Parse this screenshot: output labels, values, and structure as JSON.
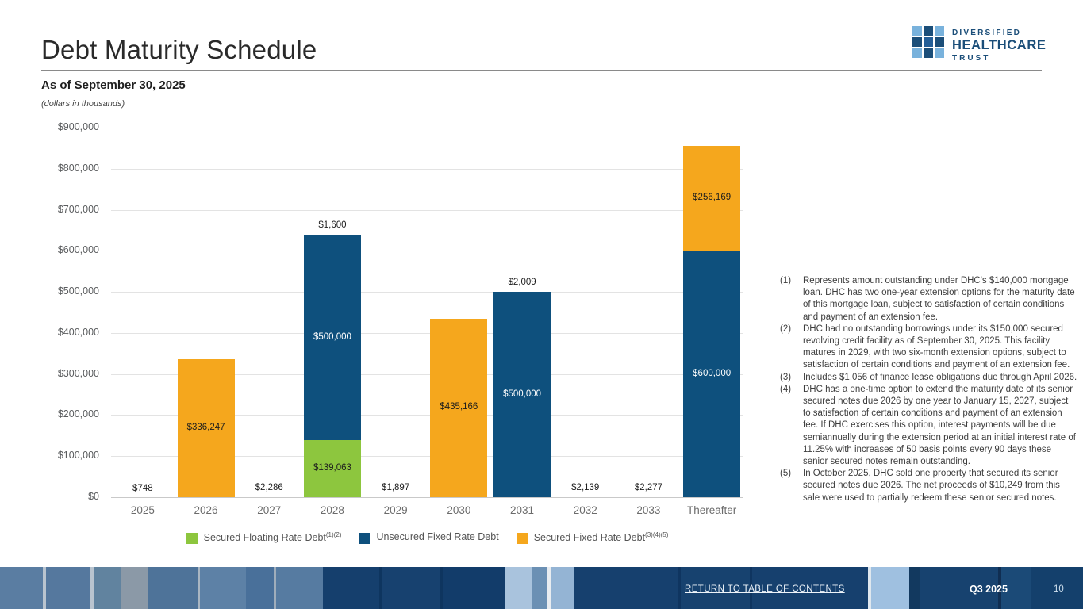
{
  "header": {
    "title": "Debt Maturity Schedule",
    "subtitle": "As of September 30, 2025",
    "units_note": "(dollars in thousands)",
    "logo": {
      "line1": "DIVERSIFIED",
      "line2": "HEALTHCARE",
      "line3": "TRUST"
    }
  },
  "chart_data": {
    "type": "bar",
    "stacked": true,
    "title": "Debt Maturity Schedule",
    "subtitle": "As of September 30, 2025",
    "units": "dollars in thousands",
    "categories": [
      "2025",
      "2026",
      "2027",
      "2028",
      "2029",
      "2030",
      "2031",
      "2032",
      "2033",
      "Thereafter"
    ],
    "series": [
      {
        "name": "Secured Floating Rate Debt",
        "legend_suffix": "(1)(2)",
        "color": "#8dc63e",
        "label_color": "#1d1d1d",
        "values": [
          0,
          0,
          0,
          139063,
          0,
          0,
          0,
          0,
          0,
          0
        ]
      },
      {
        "name": "Unsecured Fixed Rate Debt",
        "legend_suffix": "",
        "color": "#0e507d",
        "label_color": "#ffffff",
        "values": [
          0,
          0,
          0,
          500000,
          0,
          0,
          500000,
          0,
          0,
          600000
        ]
      },
      {
        "name": "Secured Fixed Rate Debt",
        "legend_suffix": "(3)(4)(5)",
        "color": "#f5a71d",
        "label_color": "#1d1d1d",
        "values": [
          748,
          336247,
          2286,
          1600,
          1897,
          435166,
          2009,
          2139,
          2277,
          256169
        ]
      }
    ],
    "ylim": [
      0,
      900000
    ],
    "ytick_step": 100000,
    "yticks": [
      "$900,000",
      "$800,000",
      "$700,000",
      "$600,000",
      "$500,000",
      "$400,000",
      "$300,000",
      "$200,000",
      "$100,000",
      "$0"
    ],
    "grid": true,
    "legend_position": "bottom",
    "bar_value_labels": [
      "$748",
      "$336,247",
      "$2,286",
      "$139,063 / $500,000 / $1,600",
      "$1,897",
      "$435,166",
      "$500,000 / $2,009",
      "$2,139",
      "$2,277",
      "$600,000 / $256,169"
    ]
  },
  "footnotes": [
    {
      "num": "(1)",
      "text": "Represents amount outstanding under DHC's $140,000 mortgage loan. DHC has two one-year extension options for the maturity date of this mortgage loan, subject to satisfaction of certain conditions and payment of an extension fee."
    },
    {
      "num": "(2)",
      "text": "DHC had no outstanding borrowings under its $150,000 secured revolving credit facility as of September 30, 2025. This facility matures in 2029, with two six-month extension options, subject to satisfaction of certain conditions and payment of an extension fee."
    },
    {
      "num": "(3)",
      "text": "Includes $1,056 of finance lease obligations due through April 2026."
    },
    {
      "num": "(4)",
      "text": "DHC has a one-time option to extend the maturity date of its senior secured notes due 2026 by one year to January 15, 2027, subject to satisfaction of certain conditions and payment of an extension fee. If DHC exercises this option, interest payments will be due semiannually during the extension period at an initial interest rate of 11.25% with increases of 50 basis points every 90 days these senior secured notes remain outstanding."
    },
    {
      "num": "(5)",
      "text": "In October 2025, DHC sold one property that secured its senior secured notes due 2026. The net proceeds of $10,249 from this sale were used to partially redeem these senior secured notes."
    }
  ],
  "footer": {
    "link": "RETURN TO TABLE OF CONTENTS",
    "quarter": "Q3 2025",
    "page": "10"
  }
}
